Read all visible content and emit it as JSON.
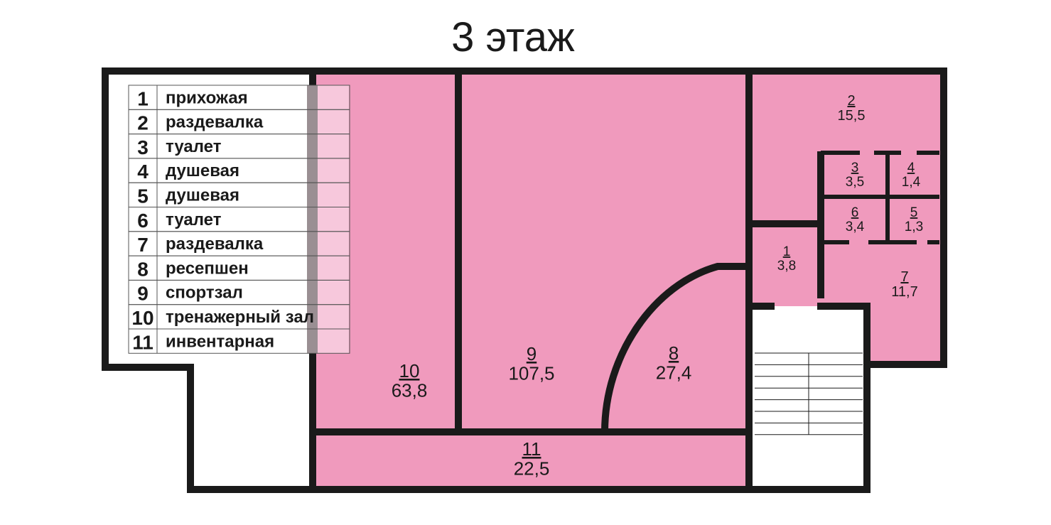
{
  "title": "3 этаж",
  "colors": {
    "room_fill": "#f09abd",
    "wall": "#1a1a1a",
    "legend_highlight": "#f7c8dc",
    "background": "#ffffff"
  },
  "rooms": [
    {
      "number": "1",
      "area": "3,8"
    },
    {
      "number": "2",
      "area": "15,5"
    },
    {
      "number": "3",
      "area": "3,5"
    },
    {
      "number": "4",
      "area": "1,4"
    },
    {
      "number": "5",
      "area": "1,3"
    },
    {
      "number": "6",
      "area": "3,4"
    },
    {
      "number": "7",
      "area": "11,7"
    },
    {
      "number": "8",
      "area": "27,4"
    },
    {
      "number": "9",
      "area": "107,5"
    },
    {
      "number": "10",
      "area": "63,8"
    },
    {
      "number": "11",
      "area": "22,5"
    }
  ],
  "legend": [
    {
      "number": "1",
      "name": "прихожая"
    },
    {
      "number": "2",
      "name": "раздевалка"
    },
    {
      "number": "3",
      "name": "туалет"
    },
    {
      "number": "4",
      "name": "душевая"
    },
    {
      "number": "5",
      "name": "душевая"
    },
    {
      "number": "6",
      "name": "туалет"
    },
    {
      "number": "7",
      "name": "раздевалка"
    },
    {
      "number": "8",
      "name": "ресепшен"
    },
    {
      "number": "9",
      "name": "спортзал"
    },
    {
      "number": "10",
      "name": "тренажерный зал"
    },
    {
      "number": "11",
      "name": "инвентарная"
    }
  ],
  "stair_icon": "staircase"
}
